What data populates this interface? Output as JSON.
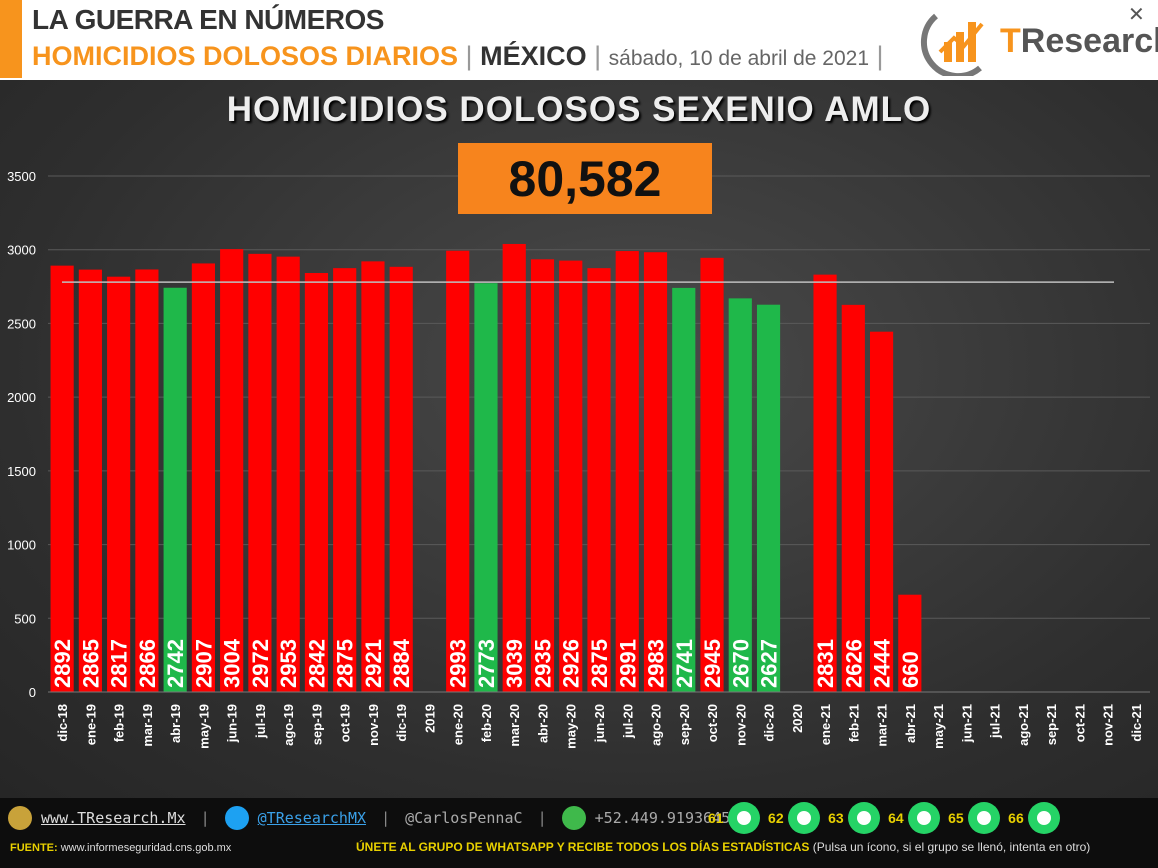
{
  "header": {
    "line1": "LA GUERRA EN NÚMEROS",
    "line2_main": "HOMICIDIOS DOLOSOS DIARIOS",
    "separator": "|",
    "line2_country": "MÉXICO",
    "line2_date": "sábado, 10 de abril de 2021",
    "logo_t": "T",
    "logo_rest": "Research",
    "close_glyph": "✕"
  },
  "chart_title": "HOMICIDIOS DOLOSOS SEXENIO AMLO",
  "total": "80,582",
  "colors": {
    "red": "#ff0000",
    "green": "#1fb84a",
    "accent": "#f7941d",
    "reference_line": "#bfbfbf"
  },
  "chart_data": {
    "type": "bar",
    "ylim": [
      0,
      3500
    ],
    "yticks": [
      0,
      500,
      1000,
      1500,
      2000,
      2500,
      3000,
      3500
    ],
    "reference_line": 2780,
    "grid": true,
    "categories": [
      "dic-18",
      "ene-19",
      "feb-19",
      "mar-19",
      "abr-19",
      "may-19",
      "jun-19",
      "jul-19",
      "ago-19",
      "sep-19",
      "oct-19",
      "nov-19",
      "dic-19",
      "2019",
      "ene-20",
      "feb-20",
      "mar-20",
      "abr-20",
      "may-20",
      "jun-20",
      "jul-20",
      "ago-20",
      "sep-20",
      "oct-20",
      "nov-20",
      "dic-20",
      "2020",
      "ene-21",
      "feb-21",
      "mar-21",
      "abr-21",
      "may-21",
      "jun-21",
      "jul-21",
      "ago-21",
      "sep-21",
      "oct-21",
      "nov-21",
      "dic-21"
    ],
    "values": [
      2892,
      2865,
      2817,
      2866,
      2742,
      2907,
      3004,
      2972,
      2953,
      2842,
      2875,
      2921,
      2884,
      null,
      2993,
      2773,
      3039,
      2935,
      2926,
      2875,
      2991,
      2983,
      2741,
      2945,
      2670,
      2627,
      null,
      2831,
      2626,
      2444,
      660,
      null,
      null,
      null,
      null,
      null,
      null,
      null,
      null
    ],
    "bar_colors": [
      "red",
      "red",
      "red",
      "red",
      "green",
      "red",
      "red",
      "red",
      "red",
      "red",
      "red",
      "red",
      "red",
      null,
      "red",
      "green",
      "red",
      "red",
      "red",
      "red",
      "red",
      "red",
      "green",
      "red",
      "green",
      "green",
      null,
      "red",
      "red",
      "red",
      "red",
      null,
      null,
      null,
      null,
      null,
      null,
      null,
      null
    ]
  },
  "footer": {
    "website": "www.TResearch.Mx",
    "twitter": "@TResearchMX",
    "author": "@CarlosPennaC",
    "phone": "+52.449.9193645",
    "groups": [
      "61",
      "62",
      "63",
      "64",
      "65",
      "66"
    ],
    "source_label": "FUENTE:",
    "source_url": "www.informeseguridad.cns.gob.mx",
    "join_text": "ÚNETE AL GRUPO DE WHATSAPP Y RECIBE TODOS LOS DÍAS ESTADÍSTICAS",
    "join_note": "(Pulsa un ícono, si el grupo se llenó, intenta en otro)"
  }
}
